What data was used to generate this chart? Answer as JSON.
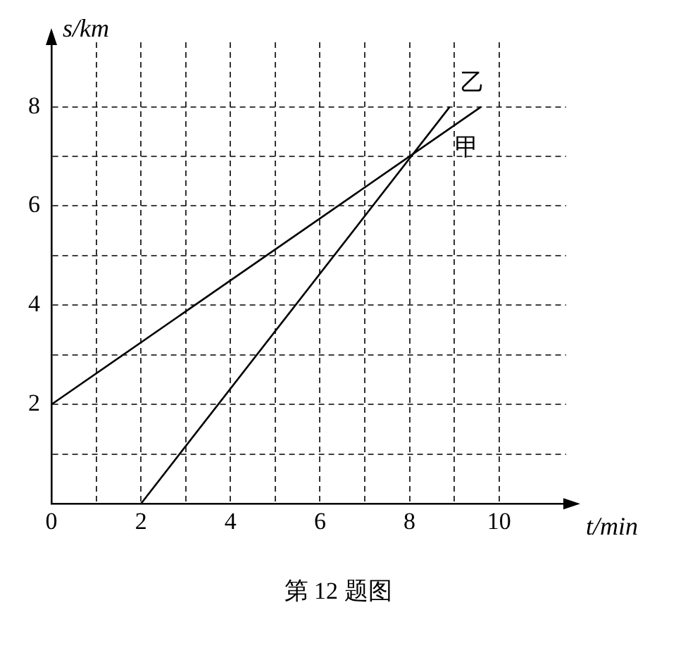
{
  "chart_data": {
    "type": "line",
    "xlabel": "t/min",
    "ylabel": "s/km",
    "annotations": [
      "第 12 题图"
    ],
    "xlim": [
      0,
      11.5
    ],
    "ylim": [
      0,
      9.3
    ],
    "xticks": [
      0,
      {
        "value": 1,
        "label": null
      },
      2,
      {
        "value": 3,
        "label": null
      },
      4,
      {
        "value": 5,
        "label": null
      },
      6,
      {
        "value": 7,
        "label": null
      },
      8,
      {
        "value": 9,
        "label": null
      },
      10
    ],
    "yticks": [
      {
        "value": 0,
        "label": null
      },
      {
        "value": 1,
        "label": null
      },
      2,
      {
        "value": 3,
        "label": null
      },
      4,
      {
        "value": 5,
        "label": null
      },
      6,
      {
        "value": 7,
        "label": null
      },
      8
    ],
    "grid": true,
    "marker": "none",
    "line_style": "solid",
    "legend": false,
    "series": [
      {
        "name": "甲",
        "color": "#000000",
        "x": [
          0,
          9.6
        ],
        "values": [
          2,
          8
        ]
      },
      {
        "name": "乙",
        "color": "#000000",
        "x": [
          2,
          8.9
        ],
        "values": [
          0,
          8
        ]
      }
    ]
  }
}
